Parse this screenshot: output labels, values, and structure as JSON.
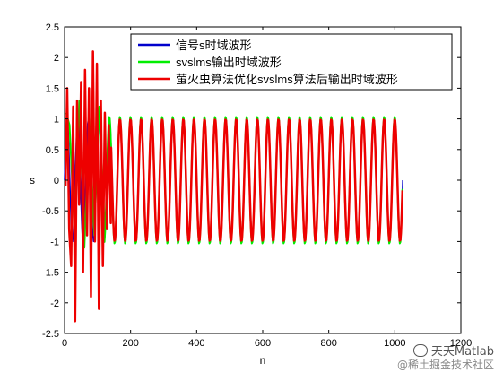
{
  "chart_data": {
    "type": "line",
    "xlabel": "n",
    "ylabel": "s",
    "xlim": [
      0,
      1200
    ],
    "ylim": [
      -2.5,
      2.5
    ],
    "xticks": [
      "0",
      "200",
      "400",
      "600",
      "800",
      "1000",
      "1200"
    ],
    "yticks": [
      "-2.5",
      "-2",
      "-1.5",
      "-1",
      "-0.5",
      "0",
      "0.5",
      "1",
      "1.5",
      "2",
      "2.5"
    ],
    "grid": false,
    "legend_position": "top-right",
    "signal": {
      "amplitude": 1,
      "period": 32,
      "n_max": 1024
    },
    "series": [
      {
        "name": "信号s时域波形",
        "color": "#0000cc",
        "description_values": {
          "amplitude": 1,
          "period": 32,
          "n_max": 1024
        }
      },
      {
        "name": "svslms输出时域波形",
        "color": "#00ee00",
        "initial_peaks_x": [
          5,
          15,
          30,
          45,
          60,
          75,
          90,
          105,
          120
        ],
        "initial_peaks_y": [
          1.1,
          0.9,
          -0.8,
          1.3,
          -1.1,
          1.0,
          -0.9,
          1.2,
          -0.6
        ]
      },
      {
        "name": "萤火虫算法优化svslms算法后输出时域波形",
        "color": "#ee0000",
        "initial_peaks_x": [
          3,
          8,
          14,
          20,
          26,
          32,
          38,
          44,
          50,
          56,
          62,
          68,
          74,
          80,
          86,
          92,
          98,
          104,
          110,
          116,
          122,
          128,
          134,
          140
        ],
        "initial_peaks_y": [
          -0.1,
          1.5,
          -0.8,
          -1.4,
          1.2,
          -2.3,
          1.3,
          -0.4,
          1.6,
          -1.5,
          1.8,
          -0.9,
          1.5,
          -1.9,
          2.1,
          -1.0,
          1.9,
          -2.1,
          1.3,
          -1.4,
          1.1,
          -0.8,
          0.9,
          -0.7
        ]
      }
    ]
  },
  "watermark": {
    "line1": "天天Matlab",
    "line2": "@稀土掘金技术社区"
  }
}
